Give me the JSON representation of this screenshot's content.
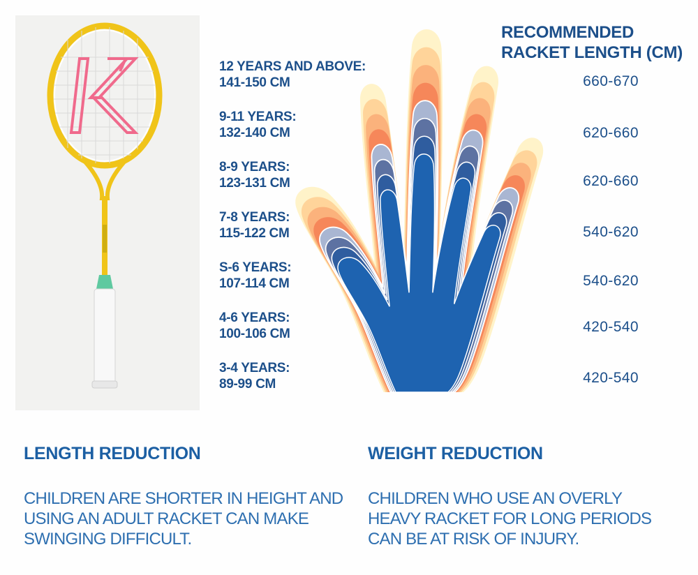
{
  "product": {
    "logo_letter": "K"
  },
  "age_groups": [
    {
      "age": "12 YEARS AND ABOVE:",
      "height": "141-150 CM"
    },
    {
      "age": "9-11 YEARS:",
      "height": "132-140 CM"
    },
    {
      "age": "8-9 YEARS:",
      "height": "123-131 CM"
    },
    {
      "age": "7-8 YEARS:",
      "height": "115-122 CM"
    },
    {
      "age": "S-6 YEARS:",
      "height": "107-114 CM"
    },
    {
      "age": "4-6 YEARS:",
      "height": "100-106 CM"
    },
    {
      "age": "3-4 YEARS:",
      "height": "89-99 CM"
    }
  ],
  "recommended": {
    "title_line1": "RECOMMENDED",
    "title_line2": "RACKET LENGTH (CM)",
    "values": [
      "660-670",
      "620-660",
      "620-660",
      "540-620",
      "540-620",
      "420-540",
      "420-540"
    ]
  },
  "sections": {
    "length": {
      "title": "LENGTH REDUCTION",
      "body": "CHILDREN ARE SHORTER IN HEIGHT AND USING AN ADULT RACKET CAN MAKE SWINGING DIFFICULT."
    },
    "weight": {
      "title": "WEIGHT REDUCTION",
      "body": "CHILDREN WHO USE AN OVERLY HEAVY RACKET FOR LONG PERIODS CAN BE AT RISK OF INJURY."
    }
  },
  "colors": {
    "text_dark_blue": "#1c4f8a",
    "text_blue": "#2e6fb0",
    "racket_yellow": "#f0c419",
    "logo_pink": "#f06a8c",
    "hand_colors": [
      "#fff3c9",
      "#ffd49a",
      "#fbb27c",
      "#f6875a",
      "#a9b6d2",
      "#5d72a2",
      "#2f5d9f",
      "#1e63b0"
    ]
  }
}
